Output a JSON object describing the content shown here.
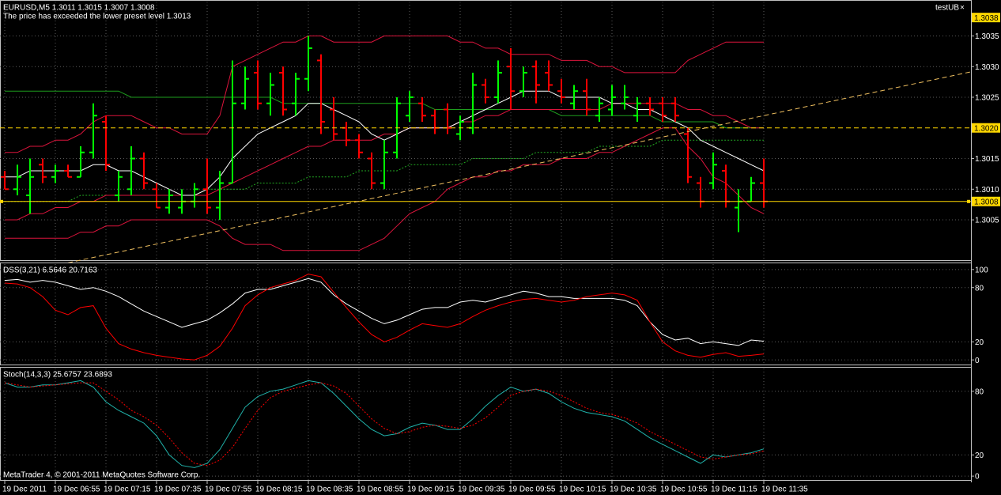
{
  "header": {
    "expert": "testUB",
    "close": "×"
  },
  "footer": "MetaTrader 4, © 2001-2011 MetaQuotes Software Corp.",
  "chart_data": [
    {
      "type": "ohlc",
      "title": "EURUSD,M5  1.3011 1.3015 1.3007 1.3008",
      "subtitle": "The price has exceeded the lower preset level 1.3013",
      "categories": [
        "19 Dec 2011",
        null,
        null,
        null,
        "19 Dec 06:55",
        null,
        null,
        null,
        "19 Dec 07:15",
        null,
        null,
        null,
        "19 Dec 07:35",
        null,
        null,
        null,
        "19 Dec 07:55",
        null,
        null,
        null,
        "19 Dec 08:15",
        null,
        null,
        null,
        "19 Dec 08:35",
        null,
        null,
        null,
        "19 Dec 08:55",
        null,
        null,
        null,
        "19 Dec 09:15",
        null,
        null,
        null,
        "19 Dec 09:35",
        null,
        null,
        null,
        "19 Dec 09:55",
        null,
        null,
        null,
        "19 Dec 10:15",
        null,
        null,
        null,
        "19 Dec 10:35",
        null,
        null,
        null,
        "19 Dec 10:55",
        null,
        null,
        null,
        "19 Dec 11:15",
        null,
        null,
        null,
        "19 Dec 11:35"
      ],
      "open": [
        1.3012,
        1.301,
        1.3009,
        1.3014,
        1.3012,
        1.3013,
        1.3012,
        1.3016,
        1.3021,
        1.3009,
        1.301,
        1.3015,
        1.301,
        1.3007,
        1.3007,
        1.3008,
        1.301,
        1.3007,
        1.3011,
        1.3024,
        1.3029,
        1.3024,
        1.3029,
        1.3024,
        1.3028,
        1.3031,
        1.3023,
        1.302,
        1.3018,
        1.3015,
        1.3011,
        1.3016,
        1.3022,
        1.3024,
        1.3022,
        1.3023,
        1.3019,
        1.302,
        1.3027,
        1.3025,
        1.303,
        1.3026,
        1.303,
        1.3029,
        1.3026,
        1.3024,
        1.3026,
        1.3022,
        1.3023,
        1.3024,
        1.3022,
        1.3024,
        1.3024,
        1.3024,
        1.3019,
        1.3011,
        1.3011,
        1.3013,
        1.3007,
        1.3008,
        1.3011
      ],
      "high": [
        1.3013,
        1.3014,
        1.3015,
        1.3015,
        1.3014,
        1.3014,
        1.3017,
        1.3024,
        1.3022,
        1.3013,
        1.3017,
        1.3016,
        1.3011,
        1.301,
        1.301,
        1.3011,
        1.3015,
        1.3013,
        1.3031,
        1.303,
        1.3031,
        1.3029,
        1.303,
        1.3029,
        1.3035,
        1.3032,
        1.3025,
        1.3021,
        1.3019,
        1.3016,
        1.3018,
        1.3025,
        1.3026,
        1.3025,
        1.3023,
        1.3024,
        1.3022,
        1.3029,
        1.3028,
        1.3031,
        1.3033,
        1.303,
        1.3031,
        1.3031,
        1.3028,
        1.3027,
        1.3028,
        1.3025,
        1.3027,
        1.3027,
        1.3025,
        1.3025,
        1.3025,
        1.3025,
        1.302,
        1.3012,
        1.3016,
        1.3014,
        1.301,
        1.3012,
        1.3015
      ],
      "low": [
        1.301,
        1.3009,
        1.3006,
        1.3011,
        1.3011,
        1.3012,
        1.3012,
        1.3015,
        1.3013,
        1.3008,
        1.3009,
        1.301,
        1.3007,
        1.3006,
        1.3006,
        1.3007,
        1.3006,
        1.3005,
        1.3011,
        1.3023,
        1.3023,
        1.3022,
        1.3022,
        1.3022,
        1.3026,
        1.3019,
        1.3018,
        1.3017,
        1.3015,
        1.301,
        1.301,
        1.3015,
        1.3021,
        1.3021,
        1.3019,
        1.3019,
        1.3018,
        1.3019,
        1.3024,
        1.3024,
        1.3023,
        1.3025,
        1.3024,
        1.3026,
        1.3024,
        1.3023,
        1.3022,
        1.3021,
        1.3022,
        1.3023,
        1.3021,
        1.3022,
        1.3021,
        1.3021,
        1.3011,
        1.3007,
        1.301,
        1.3007,
        1.3003,
        1.3008,
        1.3007
      ],
      "close": [
        1.301,
        1.3012,
        1.3012,
        1.3012,
        1.3013,
        1.3012,
        1.3016,
        1.3022,
        1.3014,
        1.3012,
        1.3015,
        1.3011,
        1.3007,
        1.3009,
        1.3008,
        1.301,
        1.3007,
        1.3011,
        1.3024,
        1.3028,
        1.3024,
        1.3027,
        1.3023,
        1.3028,
        1.3033,
        1.3021,
        1.3019,
        1.3018,
        1.3016,
        1.3011,
        1.3016,
        1.3024,
        1.3025,
        1.3022,
        1.302,
        1.302,
        1.3021,
        1.3027,
        1.3025,
        1.3029,
        1.3026,
        1.3029,
        1.3027,
        1.3027,
        1.3025,
        1.3026,
        1.3023,
        1.3024,
        1.3025,
        1.3025,
        1.3024,
        1.3023,
        1.3022,
        1.3022,
        1.3012,
        1.3008,
        1.3014,
        1.3008,
        1.3008,
        1.3011,
        1.3008
      ],
      "up_color": "#00ff00",
      "down_color": "#ff0000",
      "series": [
        {
          "color": "#1e9e1e",
          "style": "solid",
          "values": [
            1.3026,
            1.3026,
            1.3026,
            1.3026,
            1.3026,
            1.3026,
            1.3026,
            1.3026,
            1.3026,
            1.3026,
            1.3025,
            1.3025,
            1.3025,
            1.3025,
            1.3025,
            1.3025,
            1.3025,
            1.3025,
            1.3025,
            1.3025,
            1.3025,
            1.3025,
            1.3024,
            1.3024,
            1.3024,
            1.3024,
            1.3024,
            1.3024,
            1.3024,
            1.3024,
            1.3024,
            1.3024,
            1.3024,
            1.3024,
            1.3023,
            1.3023,
            1.3023,
            1.3023,
            1.3023,
            1.3023,
            1.3023,
            1.3023,
            1.3023,
            1.3023,
            1.3022,
            1.3022,
            1.3022,
            1.3022,
            1.3022,
            1.3022,
            1.3022,
            1.3022,
            1.3021,
            1.3021,
            1.3021,
            1.3021,
            1.3021,
            1.302,
            1.302,
            1.302,
            1.302
          ]
        },
        {
          "color": "#22aa22",
          "style": "dotted",
          "values": [
            1.3008,
            1.3008,
            1.3008,
            1.3008,
            1.3008,
            1.3008,
            1.3009,
            1.3009,
            1.3009,
            1.3009,
            1.3009,
            1.3009,
            1.3009,
            1.3009,
            1.3009,
            1.3009,
            1.301,
            1.301,
            1.301,
            1.301,
            1.3011,
            1.3011,
            1.3011,
            1.3011,
            1.3012,
            1.3012,
            1.3012,
            1.3012,
            1.3013,
            1.3013,
            1.3013,
            1.3013,
            1.3014,
            1.3014,
            1.3014,
            1.3014,
            1.3014,
            1.3015,
            1.3015,
            1.3015,
            1.3015,
            1.3015,
            1.3016,
            1.3016,
            1.3016,
            1.3016,
            1.3016,
            1.3017,
            1.3017,
            1.3017,
            1.3017,
            1.3017,
            1.3018,
            1.3018,
            1.3018,
            1.3018,
            1.3018,
            1.3018,
            1.3018,
            1.3018,
            1.3018
          ]
        },
        {
          "color": "#dc143c",
          "style": "solid",
          "values": [
            1.3016,
            1.3016,
            1.3017,
            1.3017,
            1.3018,
            1.3018,
            1.3019,
            1.3021,
            1.3022,
            1.3022,
            1.3022,
            1.3021,
            1.302,
            1.302,
            1.3019,
            1.3019,
            1.3019,
            1.3022,
            1.303,
            1.3031,
            1.3032,
            1.3033,
            1.3034,
            1.3034,
            1.3035,
            1.3035,
            1.3034,
            1.3034,
            1.3034,
            1.3034,
            1.3035,
            1.3035,
            1.3035,
            1.3035,
            1.3035,
            1.3035,
            1.3034,
            1.3034,
            1.3033,
            1.3033,
            1.3032,
            1.3032,
            1.3032,
            1.3032,
            1.3031,
            1.3031,
            1.3031,
            1.303,
            1.303,
            1.3029,
            1.3029,
            1.3029,
            1.3029,
            1.3029,
            1.3031,
            1.3032,
            1.3033,
            1.3034,
            1.3034,
            1.3034,
            1.3034
          ]
        },
        {
          "color": "#dc143c",
          "style": "solid",
          "values": [
            1.3005,
            1.3005,
            1.3006,
            1.3006,
            1.3007,
            1.3007,
            1.3008,
            1.3008,
            1.3009,
            1.3009,
            1.3009,
            1.3009,
            1.3009,
            1.3009,
            1.3009,
            1.3009,
            1.3009,
            1.301,
            1.3011,
            1.3012,
            1.3013,
            1.3014,
            1.3015,
            1.3016,
            1.3017,
            1.3017,
            1.3018,
            1.3018,
            1.3018,
            1.3018,
            1.3019,
            1.3019,
            1.302,
            1.302,
            1.302,
            1.302,
            1.3021,
            1.3021,
            1.3022,
            1.3022,
            1.3023,
            1.3023,
            1.3023,
            1.3023,
            1.3023,
            1.3023,
            1.3023,
            1.3023,
            1.3024,
            1.3024,
            1.3024,
            1.3024,
            1.3024,
            1.3024,
            1.3023,
            1.3023,
            1.3022,
            1.3022,
            1.3021,
            1.302,
            1.302
          ]
        },
        {
          "color": "#dc143c",
          "style": "solid",
          "values": [
            1.3002,
            1.3002,
            1.3002,
            1.3002,
            1.3002,
            1.3002,
            1.3003,
            1.3003,
            1.3004,
            1.3004,
            1.3005,
            1.3005,
            1.3005,
            1.3005,
            1.3005,
            1.3005,
            1.3005,
            1.3004,
            1.3002,
            1.3001,
            1.3001,
            1.3001,
            1.3,
            1.3,
            1.3,
            1.3,
            1.3,
            1.3,
            1.3,
            1.3001,
            1.3002,
            1.3004,
            1.3006,
            1.3007,
            1.3008,
            1.301,
            1.3011,
            1.3012,
            1.3012,
            1.3013,
            1.3013,
            1.3014,
            1.3014,
            1.3014,
            1.3015,
            1.3015,
            1.3015,
            1.3016,
            1.3016,
            1.3017,
            1.3018,
            1.3019,
            1.302,
            1.302,
            1.3017,
            1.3015,
            1.3012,
            1.3011,
            1.3009,
            1.3007,
            1.3006
          ]
        },
        {
          "color": "#ffffff",
          "style": "solid",
          "values": [
            1.3012,
            1.3012,
            1.3013,
            1.3013,
            1.3013,
            1.3013,
            1.3013,
            1.3014,
            1.3014,
            1.3013,
            1.3013,
            1.3012,
            1.3011,
            1.301,
            1.3009,
            1.3009,
            1.301,
            1.3012,
            1.3015,
            1.3017,
            1.3019,
            1.302,
            1.3021,
            1.3022,
            1.3024,
            1.3024,
            1.3023,
            1.3022,
            1.3021,
            1.3019,
            1.3018,
            1.3019,
            1.302,
            1.302,
            1.302,
            1.302,
            1.3021,
            1.3022,
            1.3023,
            1.3024,
            1.3025,
            1.3026,
            1.3026,
            1.3026,
            1.3025,
            1.3025,
            1.3025,
            1.3025,
            1.3024,
            1.3024,
            1.3023,
            1.3023,
            1.3022,
            1.3021,
            1.302,
            1.3018,
            1.3017,
            1.3016,
            1.3015,
            1.3014,
            1.3013
          ]
        }
      ],
      "ylim": [
        1.29983,
        1.30406
      ],
      "yticks": [
        1.3035,
        {
          "value": 1.303,
          "label": "1.3030"
        },
        1.3025,
        1.3015,
        {
          "value": 1.301,
          "label": "1.3010"
        },
        1.3005
      ],
      "levels": [
        {
          "value": 1.302,
          "label": "1.3020",
          "color": "#ffd700",
          "style": "dashed"
        },
        {
          "value": 1.3008,
          "label": "1.3008",
          "color": "#ffd700",
          "style": "solid"
        }
      ],
      "price_marks": [
        {
          "value": 1.3038,
          "label": "1.3038",
          "color": "#ffd700"
        }
      ],
      "trendline": {
        "x": [
          5,
          60
        ],
        "y": [
          1.2998,
          1.3022
        ],
        "color": "#f0c060",
        "ray": true
      },
      "grid": true
    },
    {
      "type": "line",
      "title": "DSS(3,21) 6.5646 20.7163",
      "series": [
        {
          "color": "#ffffff",
          "style": "solid",
          "values": [
            88,
            89,
            86,
            88,
            86,
            82,
            78,
            80,
            76,
            70,
            62,
            54,
            48,
            42,
            36,
            40,
            44,
            52,
            62,
            74,
            78,
            78,
            82,
            86,
            90,
            86,
            72,
            62,
            54,
            46,
            40,
            44,
            50,
            56,
            58,
            58,
            64,
            66,
            64,
            68,
            72,
            76,
            74,
            70,
            70,
            68,
            68,
            68,
            68,
            66,
            60,
            42,
            28,
            22,
            24,
            18,
            20,
            18,
            16,
            22,
            20.7163
          ]
        },
        {
          "color": "#ff0000",
          "style": "solid",
          "values": [
            85,
            84,
            80,
            70,
            55,
            50,
            58,
            60,
            35,
            18,
            12,
            8,
            5,
            3,
            1,
            0,
            5,
            15,
            35,
            60,
            72,
            80,
            84,
            88,
            95,
            92,
            75,
            58,
            42,
            28,
            20,
            25,
            33,
            40,
            38,
            36,
            40,
            48,
            55,
            60,
            64,
            67,
            68,
            66,
            64,
            66,
            70,
            72,
            74,
            72,
            66,
            42,
            20,
            10,
            5,
            3,
            6,
            8,
            4,
            5,
            6.5646
          ]
        }
      ],
      "ylim": [
        -6,
        106
      ],
      "yticks": [
        100,
        80,
        20,
        0
      ],
      "grid": true
    },
    {
      "type": "line",
      "title": "Stoch(14,3,3) 25.6757 23.6893",
      "series": [
        {
          "color": "#20b2aa",
          "style": "solid",
          "values": [
            88,
            84,
            84,
            86,
            86,
            88,
            90,
            84,
            70,
            62,
            56,
            50,
            38,
            20,
            10,
            8,
            12,
            25,
            45,
            65,
            75,
            80,
            82,
            86,
            90,
            88,
            78,
            66,
            54,
            44,
            38,
            40,
            46,
            50,
            48,
            44,
            44,
            54,
            66,
            76,
            84,
            80,
            82,
            78,
            70,
            64,
            60,
            58,
            56,
            52,
            44,
            36,
            30,
            24,
            18,
            12,
            20,
            18,
            20,
            22,
            25.6757
          ]
        },
        {
          "color": "#ff0000",
          "style": "dotted",
          "values": [
            88,
            86,
            84,
            85,
            86,
            87,
            88,
            88,
            80,
            72,
            62,
            56,
            48,
            36,
            22,
            12,
            10,
            15,
            27,
            45,
            62,
            74,
            80,
            83,
            86,
            88,
            85,
            78,
            66,
            54,
            45,
            40,
            42,
            46,
            48,
            47,
            45,
            48,
            55,
            65,
            76,
            80,
            82,
            80,
            76,
            70,
            64,
            60,
            58,
            55,
            50,
            42,
            36,
            30,
            24,
            18,
            16,
            18,
            20,
            21,
            23.6893
          ]
        }
      ],
      "ylim": [
        -4.4,
        101.5
      ],
      "yticks": [
        80,
        20,
        0
      ],
      "grid": true
    }
  ]
}
